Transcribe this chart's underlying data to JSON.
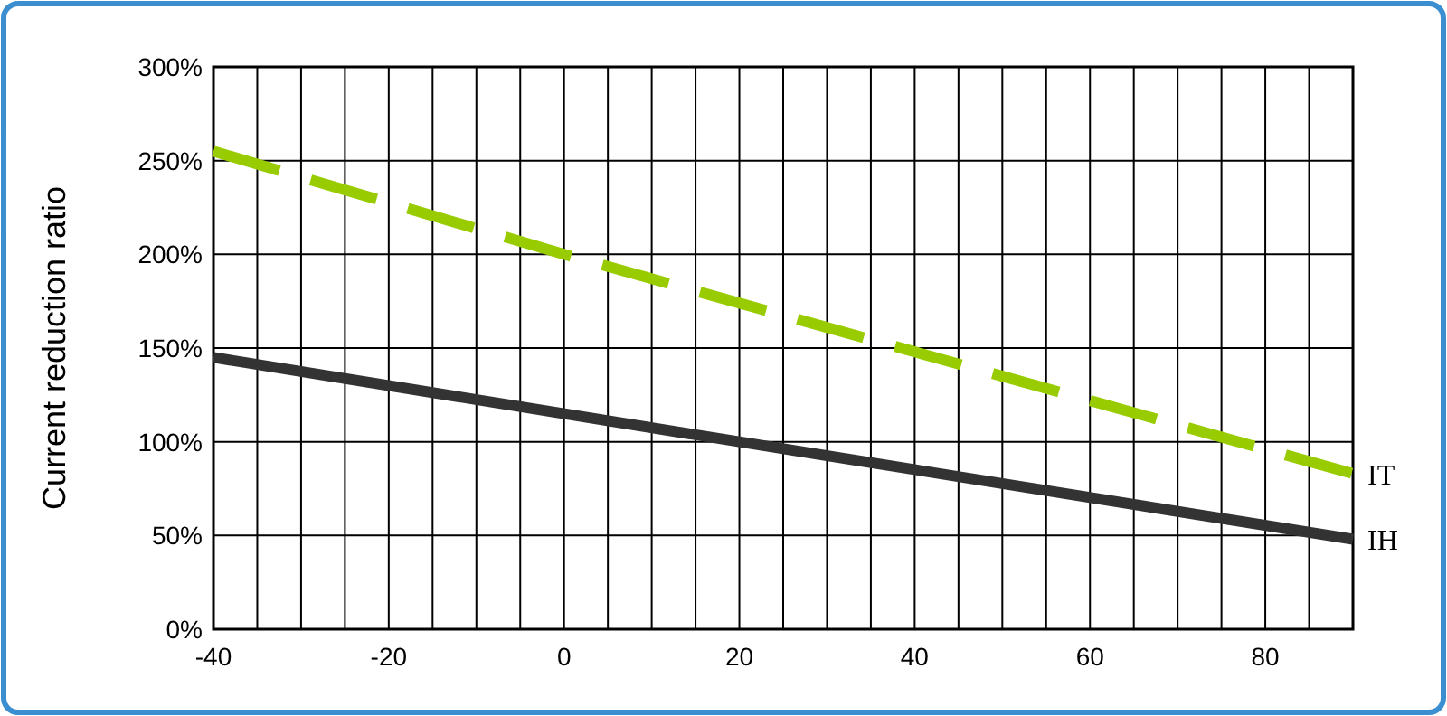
{
  "chart_data": {
    "type": "line",
    "ylabel": "Current reduction ratio",
    "x": [
      -40,
      20,
      90
    ],
    "series": [
      {
        "name": "IT",
        "color": "#99cc00",
        "values": [
          255,
          200,
          83
        ],
        "x": [
          -40,
          0,
          90
        ],
        "line_style": "dashed"
      },
      {
        "name": "IH",
        "color": "#333333",
        "values": [
          145,
          100,
          48
        ],
        "line_style": "solid"
      }
    ],
    "xlim": [
      -40,
      90
    ],
    "xticks": [
      -40,
      {
        "value": -35,
        "label": null
      },
      {
        "value": -30,
        "label": null
      },
      {
        "value": -25,
        "label": null
      },
      -20,
      {
        "value": -15,
        "label": null
      },
      {
        "value": -10,
        "label": null
      },
      {
        "value": -5,
        "label": null
      },
      0,
      {
        "value": 5,
        "label": null
      },
      {
        "value": 10,
        "label": null
      },
      {
        "value": 15,
        "label": null
      },
      20,
      {
        "value": 25,
        "label": null
      },
      {
        "value": 30,
        "label": null
      },
      {
        "value": 35,
        "label": null
      },
      40,
      {
        "value": 45,
        "label": null
      },
      {
        "value": 50,
        "label": null
      },
      {
        "value": 55,
        "label": null
      },
      60,
      {
        "value": 65,
        "label": null
      },
      {
        "value": 70,
        "label": null
      },
      {
        "value": 75,
        "label": null
      },
      80,
      {
        "value": 85,
        "label": null
      },
      {
        "value": 90,
        "label": null
      }
    ],
    "ylim": [
      0,
      300
    ],
    "yticks": [
      {
        "value": 0,
        "label": "0%"
      },
      {
        "value": 50,
        "label": "50%"
      },
      {
        "value": 100,
        "label": "100%"
      },
      {
        "value": 150,
        "label": "150%"
      },
      {
        "value": 200,
        "label": "200%"
      },
      {
        "value": 250,
        "label": "250%"
      },
      {
        "value": 300,
        "label": "300%"
      }
    ],
    "grid": true,
    "legend": "right",
    "marker": "none"
  }
}
